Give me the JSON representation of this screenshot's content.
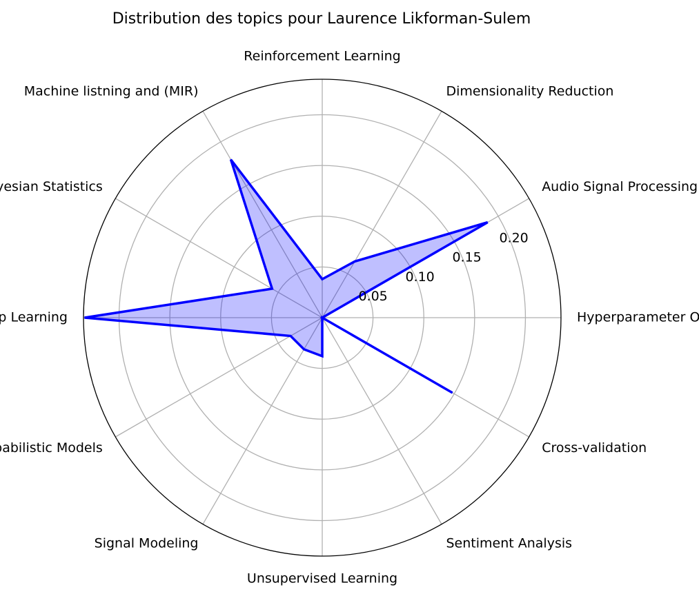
{
  "chart_data": {
    "type": "radar",
    "title": "Distribution des topics pour Laurence Likforman-Sulem",
    "categories": [
      "Hyperparameter Optimization",
      "Audio Signal Processing",
      "Dimensionality Reduction",
      "Reinforcement Learning",
      "Machine listning and (MIR)",
      "Bayesian Statistics",
      "Deep Learning",
      "Probabilistic Models",
      "Signal Modeling",
      "Unsupervised Learning",
      "Sentiment Analysis",
      "Cross-validation"
    ],
    "series": [
      {
        "values": [
          0.0,
          0.188,
          0.064,
          0.038,
          0.18,
          0.057,
          0.234,
          0.036,
          0.036,
          0.038,
          0.0,
          0.148
        ]
      }
    ],
    "rlim": [
      0,
      0.235
    ],
    "rticks": [
      0.05,
      0.1,
      0.15,
      0.2
    ],
    "rtick_labels": [
      "0.05",
      "0.10",
      "0.15",
      "0.20"
    ],
    "grid": true,
    "colors": {
      "line": "#0000ff",
      "fill": "#0000ff",
      "grid": "#b0b0b0",
      "outer": "#000000"
    }
  }
}
